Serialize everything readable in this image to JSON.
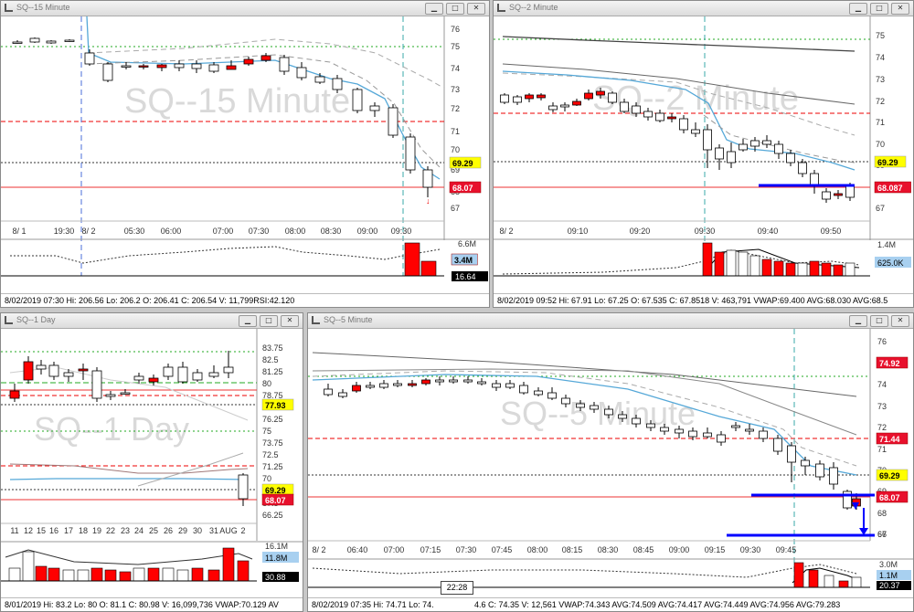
{
  "colors": {
    "up": "#ffffff",
    "down": "#ff0000",
    "wick": "#000000",
    "blue": "#0000ff",
    "ma": "#55a8d8"
  },
  "windows": [
    {
      "id": "w15",
      "title": "SQ--15 Minute",
      "watermark": "SQ--15 Minute",
      "status": "8/02/2019 07:30  Hi: 206.56  Lo: 206.2  O: 206.41  C: 206.54  V: 11,799RSI:42.120",
      "xticks": [
        "8/ 1",
        "19:30",
        "8/ 2",
        "05:30",
        "06:00",
        "07:00",
        "07:30",
        "08:00",
        "08:30",
        "09:00",
        "09:30"
      ],
      "yticks": [
        "76",
        "75",
        "74",
        "73",
        "72",
        "71",
        "70",
        "69",
        "68",
        "67"
      ],
      "badges": [
        {
          "text": "69.29",
          "kind": "yellow"
        },
        {
          "text": "68.07",
          "kind": "red"
        }
      ],
      "vol_labels": [
        "6.6M",
        "3.4M",
        "16.64"
      ]
    },
    {
      "id": "w2",
      "title": "SQ--2 Minute",
      "watermark": "SQ--2 Minute",
      "status": "8/02/2019 09:52  Hi: 67.91  Lo: 67.25  O: 67.535  C: 67.8518  V: 463,791  VWAP:69.400  AVG:68.030  AVG:68.5",
      "xticks": [
        "8/ 2",
        "09:10",
        "09:20",
        "09:30",
        "09:40",
        "09:50"
      ],
      "yticks": [
        "75",
        "74",
        "73",
        "72",
        "71",
        "70",
        "69",
        "68",
        "67"
      ],
      "badges": [
        {
          "text": "69.29",
          "kind": "yellow"
        },
        {
          "text": "68.087",
          "kind": "red"
        }
      ],
      "vol_labels": [
        "1.4M",
        "625.0K"
      ]
    },
    {
      "id": "wd",
      "title": "SQ--1 Day",
      "watermark": "SQ--1 Day",
      "status": "8/01/2019  Hi: 83.2  Lo: 80  O: 81.1  C: 80.98  V: 16,099,736  VWAP:70.129  AV",
      "xticks": [
        "11",
        "12",
        "15",
        "16",
        "17",
        "18",
        "19",
        "22",
        "23",
        "24",
        "25",
        "26",
        "29",
        "30",
        "31",
        "AUG",
        "2"
      ],
      "yticks": [
        "83.75",
        "82.5",
        "81.25",
        "80",
        "78.75",
        "77.5",
        "76.25",
        "75",
        "73.75",
        "72.5",
        "71.25",
        "70",
        "68.75",
        "67.5",
        "66.25"
      ],
      "badges": [
        {
          "text": "77.93",
          "kind": "yellow"
        },
        {
          "text": "69.29",
          "kind": "yellow"
        },
        {
          "text": "68.07",
          "kind": "red"
        }
      ],
      "vol_labels": [
        "16.1M",
        "11.8M",
        "30.88"
      ]
    },
    {
      "id": "w5",
      "title": "SQ--5 Minute",
      "watermark": "SQ--5 Minute",
      "status": "8/02/2019 07:35  Hi: 74.71  Lo: 74.",
      "status2": "4.6  C: 74.35  V: 12,561  VWAP:74.343  AVG:74.509  AVG:74.417  AVG:74.449  AVG:74.956  AVG:79.283",
      "xticks": [
        "8/ 2",
        "06:40",
        "07:00",
        "07:15",
        "07:30",
        "07:45",
        "08:00",
        "08:15",
        "08:30",
        "08:45",
        "09:00",
        "09:15",
        "09:30",
        "09:45"
      ],
      "yticks": [
        "76",
        "75",
        "74",
        "73",
        "72",
        "71",
        "70",
        "69",
        "68",
        "67",
        "66"
      ],
      "badges": [
        {
          "text": "74.92",
          "kind": "red"
        },
        {
          "text": "71.44",
          "kind": "red"
        },
        {
          "text": "69.29",
          "kind": "yellow"
        },
        {
          "text": "68.07",
          "kind": "red"
        }
      ],
      "vol_labels": [
        "3.0M",
        "1.1M",
        "20.37"
      ]
    }
  ],
  "clock": "22:28"
}
